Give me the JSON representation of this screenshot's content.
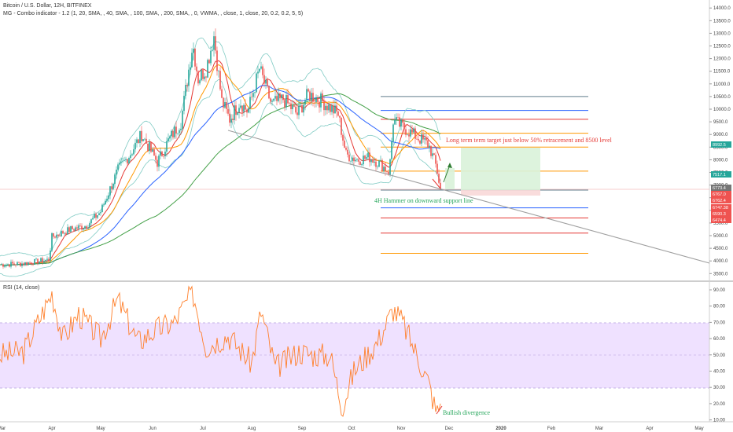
{
  "header": {
    "title": "Bitcoin / U.S. Dollar, 12H, BITFINEX",
    "indicator": "MG - Combo indicator - 1.2 (1, 20, SMA, , 40, SMA, , 100, SMA, , 200, SMA, , 0, VWMA, , close, 1, close, 20, 0.2, 0.2, 5, 5)",
    "rsi_label": "RSI (14, close)"
  },
  "colors": {
    "up": "#26a69a",
    "down": "#ef5350",
    "ma20": "#e53935",
    "ma40": "#ff9800",
    "ma100": "#2962ff",
    "ma200": "#43a047",
    "bb": "#80cbc4",
    "rsi": "#ff7f2a",
    "rsi_band": "#e9d6ff",
    "trend": "#9e9e9e",
    "annotation_red": "#e53935",
    "annotation_green": "#26a65b"
  },
  "price_axis": {
    "ticks": [
      "14000.0",
      "13500.0",
      "13000.0",
      "12500.0",
      "12000.0",
      "11500.0",
      "11000.0",
      "10500.0",
      "10000.0",
      "9500.0",
      "9000.0",
      "8500.0",
      "8000.0",
      "7500.0",
      "7000.0",
      "6500.0",
      "6000.0",
      "5500.0",
      "5000.0",
      "4500.0",
      "4000.0",
      "3500.0"
    ]
  },
  "rsi_axis": {
    "ticks": [
      "90.00",
      "80.00",
      "70.00",
      "60.00",
      "50.00",
      "40.00",
      "30.00",
      "20.00",
      "10.00"
    ]
  },
  "time_axis": {
    "labels": [
      "Mar",
      "Apr",
      "May",
      "Jun",
      "Jul",
      "Aug",
      "Sep",
      "Oct",
      "Nov",
      "Dec",
      "2020",
      "Feb",
      "Mar",
      "Apr",
      "May"
    ]
  },
  "price_badges": [
    {
      "text": "8992.5",
      "color": "#26a69a"
    },
    {
      "text": "7517.1",
      "color": "#26a69a"
    },
    {
      "text": "6773.4",
      "color": "#757575"
    },
    {
      "text": "6767.0",
      "color": "#ef5350"
    },
    {
      "text": "6762.4",
      "color": "#ef5350"
    },
    {
      "text": "6747.38",
      "color": "#ef5350"
    },
    {
      "text": "6590.3",
      "color": "#ef5350"
    },
    {
      "text": "6474.4",
      "color": "#ef5350"
    }
  ],
  "annotations": {
    "target": "Long term term target just below 50% retracement and 8500 level",
    "hammer": "4H Hammer on downward support line",
    "divergence": "Bullish divergence"
  },
  "chart_data": [
    {
      "type": "candlestick",
      "title": "Bitcoin / U.S. Dollar, 12H, BITFINEX",
      "ylim": [
        3300,
        14100
      ],
      "x": [
        "Mar",
        "Apr",
        "May",
        "Jun",
        "Jul",
        "Aug",
        "Sep",
        "Oct",
        "Nov",
        "Dec"
      ],
      "close": [
        3850,
        4100,
        5300,
        8600,
        11800,
        10400,
        10300,
        8300,
        9100,
        6800
      ],
      "fib_levels": [
        10500,
        9950,
        9600,
        9050,
        8500,
        7550,
        6800,
        6100,
        5700,
        5100,
        4300
      ],
      "trendline": {
        "from": [
          "Jul",
          9100
        ],
        "to": [
          "May",
          3950
        ]
      },
      "target_box": {
        "from": 6800,
        "to": 8600
      }
    },
    {
      "type": "line",
      "title": "RSI (14, close)",
      "ylim": [
        10,
        95
      ],
      "band": [
        30,
        70
      ],
      "x": [
        "Mar",
        "Apr",
        "May",
        "Jun",
        "Jul",
        "Aug",
        "Sep",
        "Oct",
        "Nov",
        "Dec"
      ],
      "values": [
        52,
        70,
        60,
        78,
        55,
        58,
        48,
        22,
        70,
        20
      ]
    }
  ]
}
